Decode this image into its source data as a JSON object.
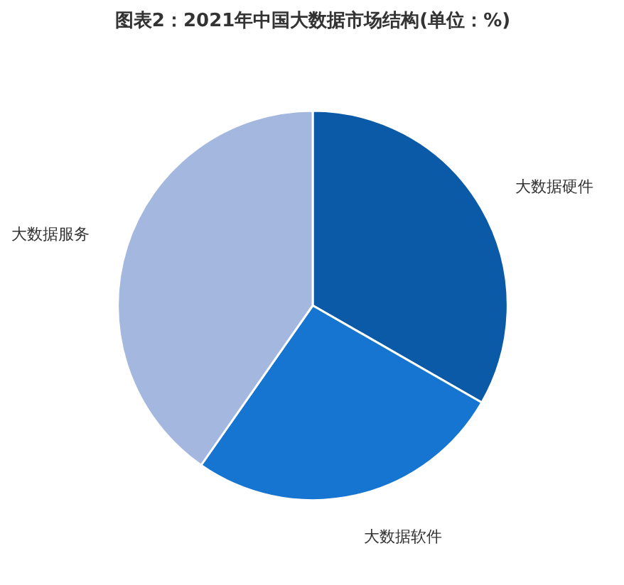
{
  "chart_data": {
    "type": "pie",
    "title": "图表2：2021年中国大数据市场结构(单位：%)",
    "categories": [
      "大数据硬件",
      "大数据软件",
      "大数据服务"
    ],
    "values": [
      33.3,
      26.4,
      40.3
    ],
    "colors": [
      "#0b5aa8",
      "#1675d1",
      "#a3b7df"
    ]
  }
}
